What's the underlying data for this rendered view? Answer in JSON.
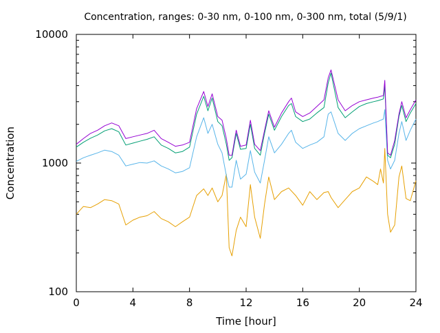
{
  "chart_data": {
    "type": "line",
    "title": "Concentration, ranges: 0-30 nm, 0-100 nm, 0-300 nm, total (5/9/1)",
    "xlabel": "Time [hour]",
    "ylabel": "Concentration",
    "xlim": [
      0,
      24
    ],
    "ylim": [
      100,
      10000
    ],
    "yscale": "log",
    "grid": false,
    "legend": "none",
    "x_ticks": [
      "0",
      "4",
      "8",
      "12",
      "16",
      "20",
      "24"
    ],
    "y_ticks": [
      "100",
      "1000",
      "10000"
    ],
    "series": [
      {
        "color": "#E69F00",
        "x": [
          0,
          0.5,
          1,
          1.5,
          2,
          2.5,
          3,
          3.5,
          4,
          4.5,
          5,
          5.5,
          6,
          6.5,
          7,
          7.5,
          8,
          8.5,
          9,
          9.3,
          9.6,
          10,
          10.3,
          10.6,
          10.8,
          11,
          11.3,
          11.6,
          12,
          12.3,
          12.6,
          13,
          13.3,
          13.6,
          14,
          14.5,
          15,
          15.5,
          16,
          16.5,
          17,
          17.5,
          17.8,
          18,
          18.5,
          19,
          19.5,
          20,
          20.5,
          21,
          21.3,
          21.5,
          21.7,
          21.8,
          22,
          22.2,
          22.5,
          22.8,
          23,
          23.3,
          23.6,
          24
        ],
        "values": [
          400,
          460,
          450,
          480,
          520,
          510,
          480,
          330,
          360,
          380,
          390,
          420,
          370,
          350,
          320,
          350,
          380,
          560,
          630,
          560,
          640,
          500,
          560,
          820,
          220,
          190,
          300,
          380,
          320,
          680,
          380,
          260,
          480,
          780,
          520,
          600,
          640,
          560,
          470,
          600,
          520,
          590,
          600,
          540,
          450,
          520,
          600,
          640,
          780,
          720,
          680,
          900,
          700,
          1300,
          400,
          290,
          330,
          780,
          950,
          530,
          510,
          730
        ]
      },
      {
        "color": "#56B4E9",
        "x": [
          0,
          0.5,
          1,
          1.5,
          2,
          2.5,
          3,
          3.5,
          4,
          4.5,
          5,
          5.5,
          6,
          6.5,
          7,
          7.5,
          8,
          8.5,
          9,
          9.3,
          9.6,
          10,
          10.3,
          10.6,
          10.8,
          11,
          11.3,
          11.6,
          12,
          12.3,
          12.6,
          13,
          13.3,
          13.6,
          14,
          14.5,
          15,
          15.2,
          15.5,
          16,
          16.5,
          17,
          17.5,
          17.8,
          18,
          18.5,
          19,
          19.5,
          20,
          20.5,
          21,
          21.3,
          21.5,
          21.7,
          21.8,
          22,
          22.2,
          22.5,
          22.8,
          23,
          23.3,
          23.6,
          24
        ],
        "values": [
          1030,
          1100,
          1150,
          1200,
          1260,
          1230,
          1150,
          950,
          980,
          1010,
          1000,
          1040,
          950,
          900,
          840,
          860,
          920,
          1600,
          2250,
          1700,
          2000,
          1400,
          1200,
          800,
          650,
          650,
          1050,
          750,
          820,
          1250,
          850,
          700,
          1050,
          1600,
          1200,
          1400,
          1700,
          1800,
          1450,
          1300,
          1380,
          1450,
          1600,
          2400,
          2500,
          1700,
          1500,
          1700,
          1850,
          1950,
          2050,
          2100,
          2150,
          2200,
          2600,
          1050,
          900,
          1050,
          1700,
          2100,
          1500,
          1800,
          2200
        ]
      },
      {
        "color": "#009E73",
        "x": [
          0,
          0.5,
          1,
          1.5,
          2,
          2.5,
          3,
          3.5,
          4,
          4.5,
          5,
          5.5,
          6,
          6.5,
          7,
          7.5,
          8,
          8.5,
          9,
          9.3,
          9.6,
          10,
          10.3,
          10.6,
          10.8,
          11,
          11.3,
          11.6,
          12,
          12.3,
          12.6,
          13,
          13.3,
          13.6,
          14,
          14.5,
          15,
          15.2,
          15.5,
          16,
          16.5,
          17,
          17.5,
          17.8,
          18,
          18.5,
          19,
          19.5,
          20,
          20.5,
          21,
          21.3,
          21.5,
          21.7,
          21.8,
          22,
          22.2,
          22.5,
          22.8,
          23,
          23.3,
          23.6,
          24
        ],
        "values": [
          1330,
          1450,
          1560,
          1650,
          1780,
          1850,
          1750,
          1380,
          1430,
          1480,
          1530,
          1600,
          1380,
          1300,
          1200,
          1230,
          1330,
          2400,
          3300,
          2550,
          3200,
          2100,
          1950,
          1400,
          1050,
          1100,
          1700,
          1280,
          1300,
          2000,
          1300,
          1150,
          1700,
          2400,
          1800,
          2300,
          2800,
          2900,
          2300,
          2100,
          2200,
          2450,
          2700,
          4200,
          5000,
          2700,
          2250,
          2500,
          2750,
          2900,
          3000,
          3050,
          3100,
          3150,
          4000,
          1150,
          1100,
          1400,
          2300,
          2800,
          2100,
          2450,
          2900
        ]
      },
      {
        "color": "#9400D3",
        "x": [
          0,
          0.5,
          1,
          1.5,
          2,
          2.5,
          3,
          3.5,
          4,
          4.5,
          5,
          5.5,
          6,
          6.5,
          7,
          7.5,
          8,
          8.5,
          9,
          9.3,
          9.6,
          10,
          10.3,
          10.6,
          10.8,
          11,
          11.3,
          11.6,
          12,
          12.3,
          12.6,
          13,
          13.3,
          13.6,
          14,
          14.5,
          15,
          15.2,
          15.5,
          16,
          16.5,
          17,
          17.5,
          17.8,
          18,
          18.5,
          19,
          19.5,
          20,
          20.5,
          21,
          21.3,
          21.5,
          21.7,
          21.8,
          22,
          22.2,
          22.5,
          22.8,
          23,
          23.3,
          23.6,
          24
        ],
        "values": [
          1400,
          1550,
          1700,
          1800,
          1950,
          2050,
          1950,
          1550,
          1600,
          1650,
          1700,
          1800,
          1550,
          1450,
          1350,
          1380,
          1450,
          2650,
          3600,
          2750,
          3450,
          2300,
          2150,
          1550,
          1150,
          1150,
          1800,
          1350,
          1380,
          2150,
          1400,
          1250,
          1800,
          2550,
          1900,
          2450,
          3000,
          3200,
          2500,
          2300,
          2450,
          2750,
          3100,
          4600,
          5300,
          3100,
          2550,
          2800,
          3000,
          3100,
          3200,
          3250,
          3300,
          3350,
          4400,
          1200,
          1150,
          1500,
          2400,
          3000,
          2250,
          2600,
          3100
        ]
      }
    ]
  }
}
